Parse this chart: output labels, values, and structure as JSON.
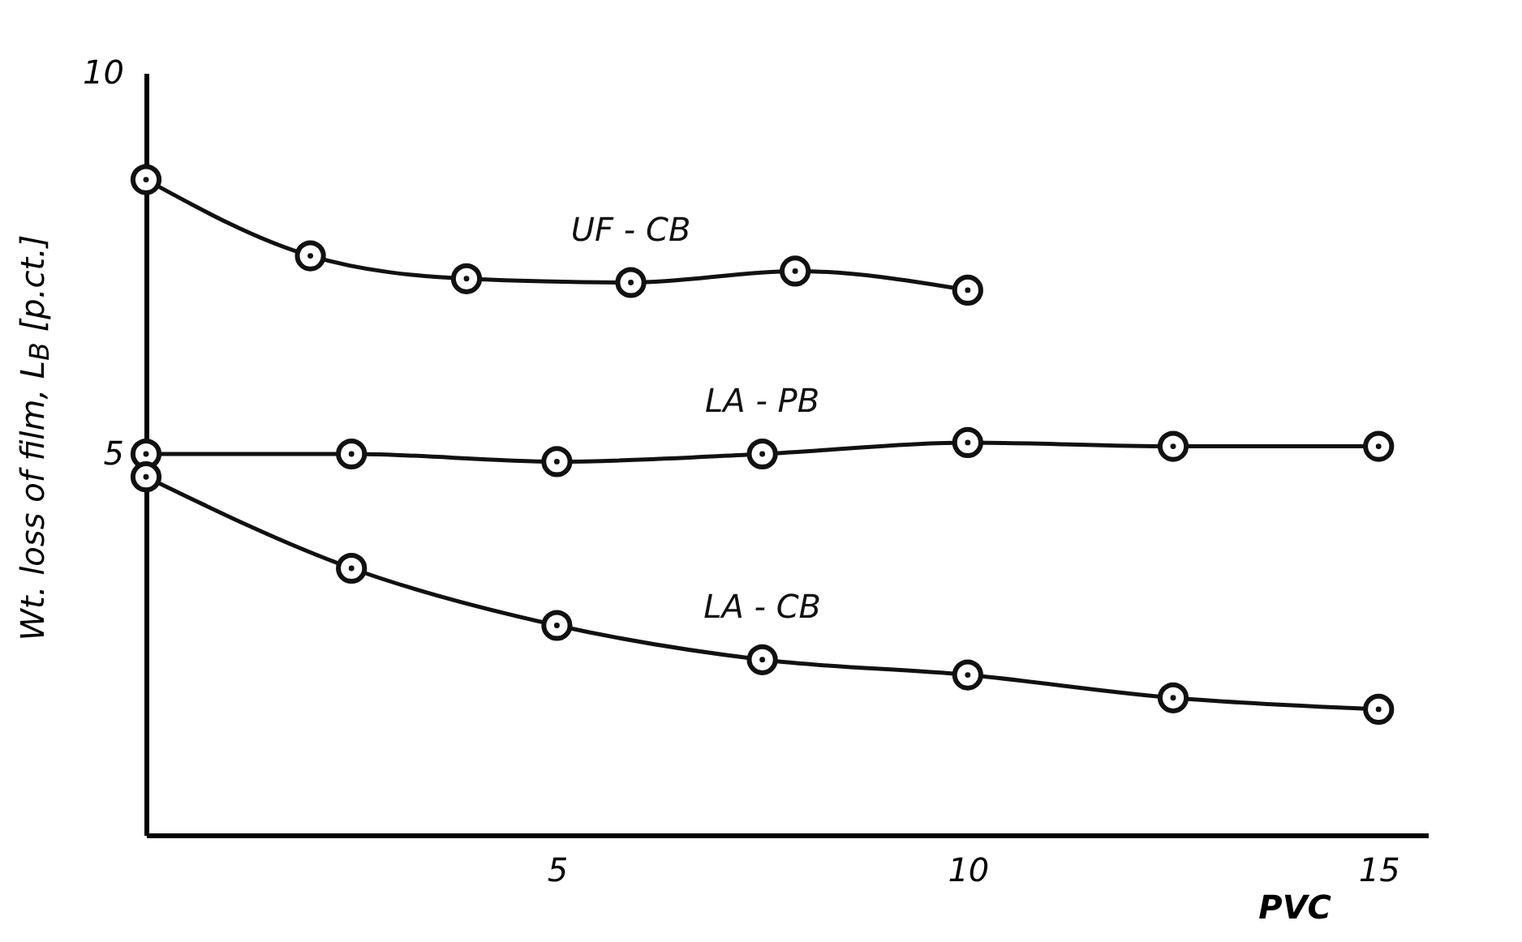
{
  "chart_data": {
    "type": "line",
    "xlabel": "PVC",
    "ylabel": "Wt. loss of film, L$_{B}$ [p.ct.]",
    "xlim": [
      0,
      15.6
    ],
    "ylim": [
      0,
      10
    ],
    "xticks": [
      5,
      10,
      15
    ],
    "yticks": [
      5,
      10
    ],
    "grid": false,
    "legend": false,
    "marker": "circle",
    "line_style": "solid",
    "series": [
      {
        "name": "UF - CB",
        "color": "#111111",
        "x": [
          0,
          2,
          3.9,
          5.9,
          7.9,
          10
        ],
        "values": [
          8.6,
          7.6,
          7.3,
          7.25,
          7.4,
          7.15
        ]
      },
      {
        "name": "LA - PB",
        "color": "#111111",
        "x": [
          0,
          2.5,
          5,
          7.5,
          10,
          12.5,
          15
        ],
        "values": [
          5.0,
          5.0,
          4.9,
          5.0,
          5.15,
          5.1,
          5.1
        ]
      },
      {
        "name": "LA - CB",
        "color": "#111111",
        "x": [
          0,
          2.5,
          5,
          7.5,
          10,
          12.5,
          15
        ],
        "values": [
          4.7,
          3.5,
          2.75,
          2.3,
          2.1,
          1.8,
          1.65
        ]
      }
    ]
  }
}
